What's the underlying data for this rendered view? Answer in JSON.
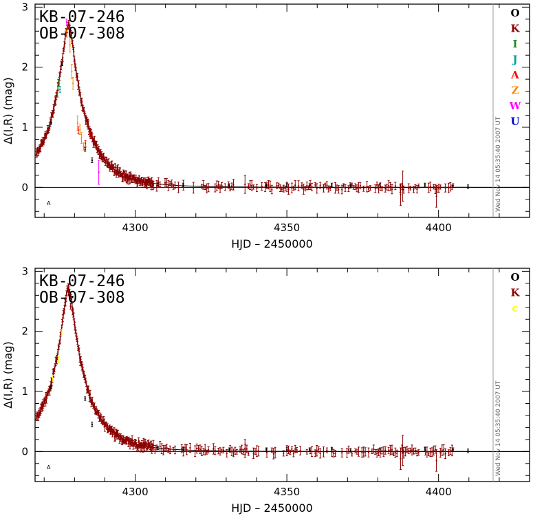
{
  "figure": {
    "timestamp": "Wed Nov 14 05:35:40 2007 UT"
  },
  "chart_data": [
    {
      "type": "scatter",
      "title_lines": [
        "KB-07-246",
        "OB-07-308"
      ],
      "xlabel": "HJD – 2450000",
      "ylabel": "Δ(I,R) (mag)",
      "xlim": [
        4267,
        4430
      ],
      "ylim": [
        -0.5,
        3.05
      ],
      "xticks": [
        4300,
        4350,
        4400
      ],
      "yticks": [
        0,
        1,
        2,
        3
      ],
      "corner_mark": "A",
      "model_curve": {
        "t0": 4278.0,
        "u0": 0.12,
        "tE": 13.5,
        "baseline": 0.0,
        "peak_scale": 2.72
      },
      "legend_position": "top-right",
      "legend": [
        {
          "label": "O",
          "color": "#000000"
        },
        {
          "label": "K",
          "color": "#8b0000"
        },
        {
          "label": "I",
          "color": "#228b22"
        },
        {
          "label": "J",
          "color": "#00a0a0"
        },
        {
          "label": "A",
          "color": "#ff0000"
        },
        {
          "label": "Z",
          "color": "#ff8c00"
        },
        {
          "label": "W",
          "color": "#ff00ff"
        },
        {
          "label": "U",
          "color": "#0000cd"
        }
      ],
      "series": [
        {
          "label": "K",
          "sampling": "dense",
          "x_range": [
            4267.5,
            4306
          ],
          "y_offset": 0.0,
          "scatter": 0.05,
          "err": 0.05
        },
        {
          "label": "K",
          "sampling": "sparse",
          "x_range": [
            4306,
            4405
          ],
          "y_offset": 0.0,
          "scatter": 0.04,
          "err": 0.06
        },
        {
          "label": "K",
          "points": [
            [
              4387.5,
              -0.12,
              0.18
            ],
            [
              4388.2,
              0.02,
              0.25
            ],
            [
              4399.3,
              -0.15,
              0.18
            ],
            [
              4336.2,
              0.05,
              0.15
            ]
          ]
        },
        {
          "label": "O",
          "points": [
            [
              4272.3,
              1.07,
              0.02
            ],
            [
              4275.9,
              2.05,
              0.02
            ],
            [
              4283.5,
              0.63,
              0.03
            ],
            [
              4285.8,
              0.45,
              0.04
            ],
            [
              4307.5,
              0.06,
              0.03
            ],
            [
              4315.8,
              0.04,
              0.03
            ],
            [
              4331.0,
              0.03,
              0.03
            ],
            [
              4343.2,
              0.03,
              0.03
            ],
            [
              4350.0,
              0.04,
              0.03
            ],
            [
              4357.5,
              0.03,
              0.03
            ],
            [
              4364.8,
              0.04,
              0.03
            ],
            [
              4371.0,
              0.02,
              0.03
            ],
            [
              4380.7,
              0.03,
              0.03
            ],
            [
              4395.5,
              0.04,
              0.03
            ],
            [
              4404.8,
              0.03,
              0.03
            ],
            [
              4409.7,
              0.01,
              0.03
            ]
          ]
        },
        {
          "label": "I",
          "points": [
            [
              4274.3,
              1.55,
              0.05
            ],
            [
              4274.6,
              1.68,
              0.05
            ],
            [
              4274.9,
              1.78,
              0.05
            ]
          ]
        },
        {
          "label": "J",
          "points": [
            [
              4275.2,
              1.63,
              0.05
            ]
          ]
        },
        {
          "label": "A",
          "points": [
            [
              4278.4,
              2.58,
              0.06
            ],
            [
              4281.3,
              0.95,
              0.06
            ],
            [
              4283.6,
              0.73,
              0.05
            ],
            [
              4285.0,
              0.88,
              0.04
            ]
          ]
        },
        {
          "label": "Z",
          "points": [
            [
              4277.5,
              2.6,
              0.1
            ],
            [
              4278.5,
              2.37,
              0.12
            ],
            [
              4279.1,
              1.93,
              0.12
            ],
            [
              4279.5,
              1.73,
              0.1
            ],
            [
              4281.0,
              1.07,
              0.12
            ],
            [
              4281.8,
              0.96,
              0.08
            ],
            [
              4282.3,
              0.82,
              0.09
            ],
            [
              4283.0,
              0.68,
              0.06
            ]
          ]
        },
        {
          "label": "W",
          "points": [
            [
              4277.4,
              2.75,
              0.05
            ],
            [
              4288.0,
              0.25,
              0.2
            ]
          ]
        }
      ]
    },
    {
      "type": "scatter",
      "title_lines": [
        "KB-07-246",
        "OB-07-308"
      ],
      "xlabel": "HJD – 2450000",
      "ylabel": "Δ(I,R) (mag)",
      "xlim": [
        4267,
        4430
      ],
      "ylim": [
        -0.5,
        3.05
      ],
      "xticks": [
        4300,
        4350,
        4400
      ],
      "yticks": [
        0,
        1,
        2,
        3
      ],
      "corner_mark": "A",
      "model_curve": {
        "t0": 4278.0,
        "u0": 0.12,
        "tE": 13.5,
        "baseline": 0.0,
        "peak_scale": 2.72
      },
      "legend_position": "top-right",
      "legend": [
        {
          "label": "O",
          "color": "#000000"
        },
        {
          "label": "K",
          "color": "#8b0000"
        },
        {
          "label": "c",
          "color": "#ffff00"
        }
      ],
      "series": [
        {
          "label": "K",
          "sampling": "dense",
          "x_range": [
            4267.5,
            4306
          ],
          "y_offset": 0.0,
          "scatter": 0.05,
          "err": 0.05
        },
        {
          "label": "K",
          "sampling": "sparse",
          "x_range": [
            4306,
            4405
          ],
          "y_offset": 0.0,
          "scatter": 0.04,
          "err": 0.06
        },
        {
          "label": "K",
          "points": [
            [
              4278.0,
              2.65,
              0.06
            ],
            [
              4278.7,
              2.42,
              0.05
            ],
            [
              4387.5,
              -0.12,
              0.18
            ],
            [
              4388.2,
              0.02,
              0.25
            ],
            [
              4399.3,
              -0.15,
              0.18
            ],
            [
              4336.2,
              0.05,
              0.15
            ]
          ]
        },
        {
          "label": "O",
          "points": [
            [
              4272.3,
              1.07,
              0.02
            ],
            [
              4283.5,
              0.88,
              0.03
            ],
            [
              4285.8,
              0.45,
              0.04
            ],
            [
              4307.5,
              0.06,
              0.03
            ],
            [
              4315.8,
              0.04,
              0.03
            ],
            [
              4331.0,
              0.03,
              0.03
            ],
            [
              4343.2,
              0.03,
              0.03
            ],
            [
              4350.0,
              0.04,
              0.03
            ],
            [
              4357.5,
              0.03,
              0.03
            ],
            [
              4364.8,
              0.04,
              0.03
            ],
            [
              4371.0,
              0.02,
              0.03
            ],
            [
              4380.7,
              0.03,
              0.03
            ],
            [
              4395.5,
              0.04,
              0.03
            ],
            [
              4404.8,
              0.03,
              0.03
            ],
            [
              4409.7,
              0.01,
              0.03
            ]
          ]
        },
        {
          "label": "c",
          "points": [
            [
              4272.8,
              1.22,
              0.05
            ],
            [
              4274.7,
              1.53,
              0.05
            ],
            [
              4275.8,
              1.98,
              0.05
            ]
          ]
        }
      ]
    }
  ]
}
